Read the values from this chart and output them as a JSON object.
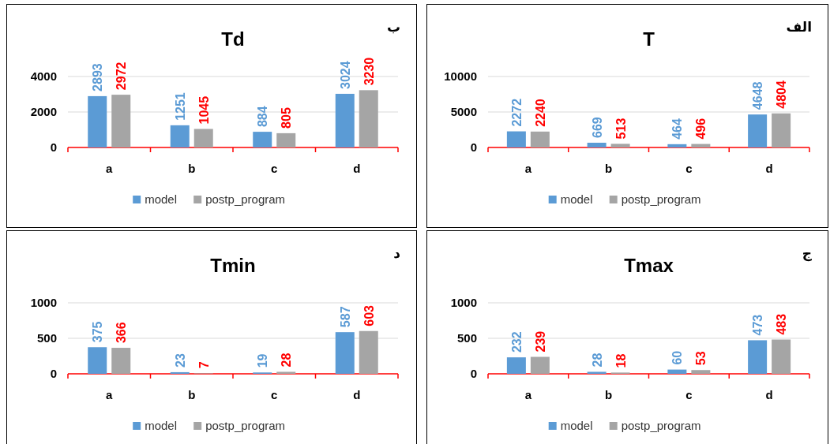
{
  "chart_data": [
    {
      "type": "bar",
      "title": "Td",
      "annotations": [
        "ب"
      ],
      "categories": [
        "a",
        "b",
        "c",
        "d"
      ],
      "series": [
        {
          "name": "model",
          "color": "#5b9bd5",
          "values": [
            2893,
            1251,
            884,
            3024
          ]
        },
        {
          "name": "postp_program",
          "color": "#a5a5a5",
          "values": [
            2972,
            1045,
            805,
            3230
          ]
        }
      ],
      "ylim": [
        0,
        4000
      ],
      "yticks": [
        0,
        2000,
        4000
      ],
      "grid": "y",
      "legend": "bottom",
      "data_labels": true
    },
    {
      "type": "bar",
      "title": "T",
      "annotations": [
        "الف"
      ],
      "categories": [
        "a",
        "b",
        "c",
        "d"
      ],
      "series": [
        {
          "name": "model",
          "color": "#5b9bd5",
          "values": [
            2272,
            669,
            464,
            4648
          ]
        },
        {
          "name": "postp_program",
          "color": "#a5a5a5",
          "values": [
            2240,
            513,
            496,
            4804
          ]
        }
      ],
      "ylim": [
        0,
        10000
      ],
      "yticks": [
        0,
        5000,
        10000
      ],
      "grid": "y",
      "legend": "bottom",
      "data_labels": true
    },
    {
      "type": "bar",
      "title": "Tmin",
      "annotations": [
        "د"
      ],
      "categories": [
        "a",
        "b",
        "c",
        "d"
      ],
      "series": [
        {
          "name": "model",
          "color": "#5b9bd5",
          "values": [
            375,
            23,
            19,
            587
          ]
        },
        {
          "name": "postp_program",
          "color": "#a5a5a5",
          "values": [
            366,
            7,
            28,
            603
          ]
        }
      ],
      "ylim": [
        0,
        1000
      ],
      "yticks": [
        0,
        500,
        1000
      ],
      "grid": "y",
      "legend": "bottom",
      "data_labels": true
    },
    {
      "type": "bar",
      "title": "Tmax",
      "annotations": [
        "ج"
      ],
      "categories": [
        "a",
        "b",
        "c",
        "d"
      ],
      "series": [
        {
          "name": "model",
          "color": "#5b9bd5",
          "values": [
            232,
            28,
            60,
            473
          ]
        },
        {
          "name": "postp_program",
          "color": "#a5a5a5",
          "values": [
            239,
            18,
            53,
            483
          ]
        }
      ],
      "ylim": [
        0,
        1000
      ],
      "yticks": [
        0,
        500,
        1000
      ],
      "grid": "y",
      "legend": "bottom",
      "data_labels": true
    }
  ]
}
